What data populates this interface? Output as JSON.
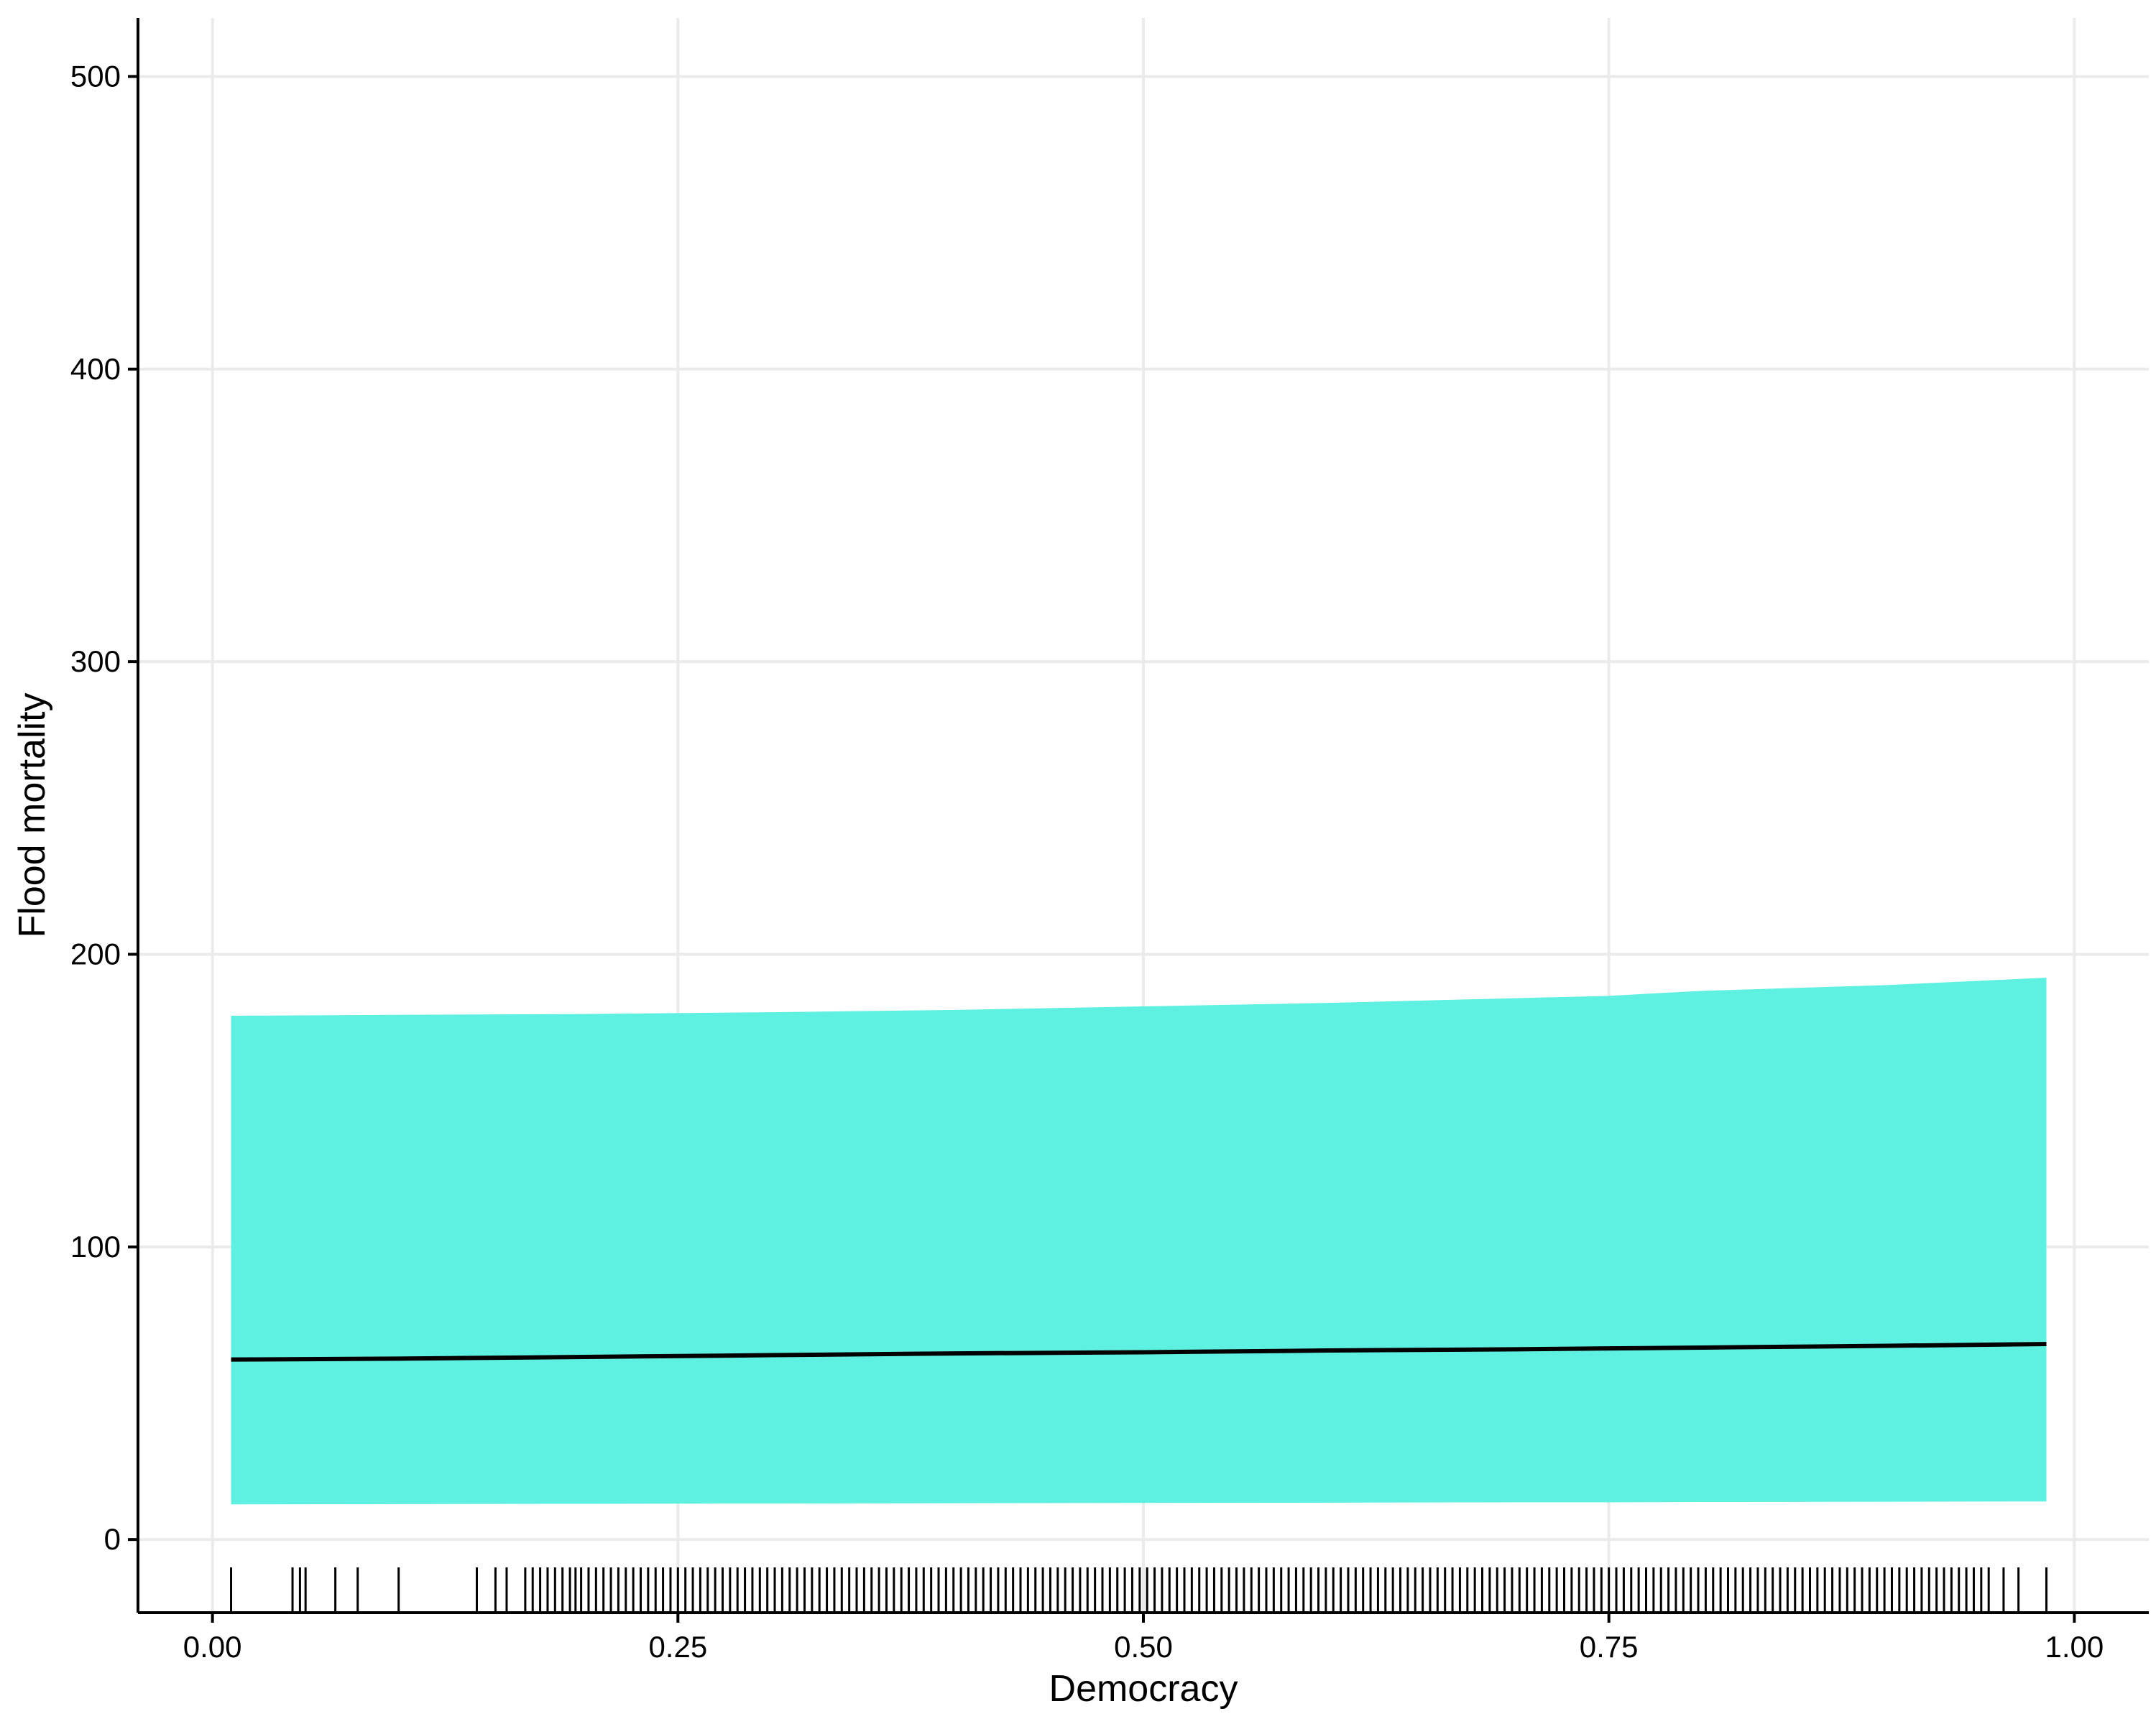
{
  "chart_data": {
    "type": "line",
    "xlabel": "Democracy",
    "ylabel": "Flood mortality",
    "xlim": [
      -0.04,
      1.04
    ],
    "ylim": [
      -25,
      520
    ],
    "x_ticks": [
      0.0,
      0.25,
      0.5,
      0.75,
      1.0
    ],
    "x_tick_labels": [
      "0.00",
      "0.25",
      "0.50",
      "0.75",
      "1.00"
    ],
    "y_ticks": [
      0,
      100,
      200,
      300,
      400,
      500
    ],
    "y_tick_labels": [
      "0",
      "100",
      "200",
      "300",
      "400",
      "500"
    ],
    "grid": true,
    "legend": "none",
    "series": [
      {
        "x": [
          0.01,
          0.1,
          0.2,
          0.3,
          0.4,
          0.5,
          0.6,
          0.7,
          0.75,
          0.8,
          0.9,
          0.985
        ],
        "fit": [
          61.5,
          61.8,
          62.4,
          63.0,
          63.6,
          64.0,
          64.6,
          65.0,
          65.3,
          65.6,
          66.2,
          66.8
        ],
        "lower": [
          12.0,
          12.1,
          12.2,
          12.3,
          12.4,
          12.5,
          12.6,
          12.7,
          12.7,
          12.8,
          12.9,
          13.0
        ],
        "upper": [
          179.0,
          179.3,
          179.6,
          180.2,
          181.0,
          182.2,
          183.4,
          185.0,
          185.8,
          187.5,
          189.5,
          192.0
        ]
      }
    ],
    "rug": [
      0.01,
      0.043,
      0.047,
      0.05,
      0.066,
      0.078,
      0.1,
      0.142,
      0.152,
      0.158,
      0.168,
      0.172,
      0.176,
      0.18,
      0.184,
      0.188,
      0.192,
      0.195,
      0.198,
      0.202,
      0.206,
      0.21,
      0.214,
      0.218,
      0.222,
      0.226,
      0.23,
      0.234,
      0.238,
      0.242,
      0.246,
      0.25,
      0.254,
      0.258,
      0.262,
      0.266,
      0.27,
      0.274,
      0.278,
      0.282,
      0.286,
      0.29,
      0.294,
      0.298,
      0.302,
      0.306,
      0.31,
      0.314,
      0.318,
      0.322,
      0.326,
      0.33,
      0.334,
      0.338,
      0.342,
      0.346,
      0.35,
      0.354,
      0.358,
      0.362,
      0.366,
      0.37,
      0.374,
      0.378,
      0.382,
      0.386,
      0.39,
      0.394,
      0.398,
      0.402,
      0.406,
      0.41,
      0.414,
      0.418,
      0.422,
      0.426,
      0.43,
      0.434,
      0.438,
      0.442,
      0.446,
      0.45,
      0.454,
      0.458,
      0.462,
      0.466,
      0.47,
      0.474,
      0.478,
      0.482,
      0.486,
      0.49,
      0.494,
      0.498,
      0.502,
      0.506,
      0.51,
      0.514,
      0.518,
      0.522,
      0.526,
      0.53,
      0.534,
      0.538,
      0.542,
      0.546,
      0.55,
      0.554,
      0.558,
      0.562,
      0.566,
      0.57,
      0.574,
      0.578,
      0.582,
      0.586,
      0.59,
      0.594,
      0.598,
      0.602,
      0.606,
      0.61,
      0.614,
      0.618,
      0.622,
      0.626,
      0.63,
      0.634,
      0.638,
      0.642,
      0.646,
      0.65,
      0.654,
      0.658,
      0.662,
      0.666,
      0.67,
      0.674,
      0.678,
      0.682,
      0.686,
      0.69,
      0.694,
      0.698,
      0.702,
      0.706,
      0.71,
      0.714,
      0.718,
      0.722,
      0.726,
      0.73,
      0.734,
      0.738,
      0.742,
      0.746,
      0.75,
      0.754,
      0.758,
      0.762,
      0.766,
      0.77,
      0.774,
      0.778,
      0.782,
      0.786,
      0.79,
      0.794,
      0.798,
      0.802,
      0.806,
      0.81,
      0.814,
      0.818,
      0.822,
      0.826,
      0.83,
      0.834,
      0.838,
      0.842,
      0.846,
      0.85,
      0.854,
      0.858,
      0.862,
      0.866,
      0.87,
      0.874,
      0.878,
      0.882,
      0.886,
      0.89,
      0.894,
      0.898,
      0.902,
      0.906,
      0.91,
      0.914,
      0.918,
      0.922,
      0.926,
      0.93,
      0.934,
      0.938,
      0.942,
      0.946,
      0.95,
      0.954,
      0.962,
      0.97,
      0.985
    ],
    "colors": {
      "band": "#5ef0e0",
      "line": "#000000",
      "grid": "#ebebeb",
      "axis": "#000000"
    }
  }
}
